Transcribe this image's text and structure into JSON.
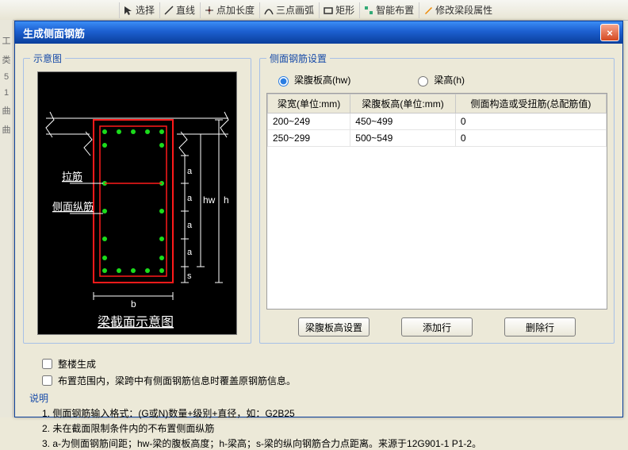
{
  "toolbar": {
    "items": [
      "选择",
      "直线",
      "点加长度",
      "三点画弧",
      "矩形",
      "智能布置",
      "修改梁段属性"
    ]
  },
  "leftStrip": [
    "工",
    "类",
    "5",
    "1",
    "曲",
    "曲"
  ],
  "dialog": {
    "title": "生成侧面钢筋",
    "close": "×"
  },
  "leftGroup": {
    "legend": "示意图"
  },
  "diagram": {
    "label_lajin": "拉筋",
    "label_cemian": "侧面纵筋",
    "caption": "梁截面示意图",
    "dim_a": "a",
    "dim_s": "s",
    "dim_b": "b",
    "dim_h": "h",
    "dim_hw": "hw"
  },
  "rightGroup": {
    "legend": "侧面钢筋设置",
    "radio1": "梁腹板高(hw)",
    "radio2": "梁高(h)"
  },
  "table": {
    "headers": [
      "梁宽(单位:mm)",
      "梁腹板高(单位:mm)",
      "侧面构造或受扭筋(总配筋值)"
    ],
    "rows": [
      [
        "200~249",
        "450~499",
        "0"
      ],
      [
        "250~299",
        "500~549",
        "0"
      ]
    ]
  },
  "buttons": {
    "b1": "梁腹板高设置",
    "b2": "添加行",
    "b3": "删除行"
  },
  "bottom": {
    "chk1": "整楼生成",
    "chk2": "布置范围内，梁跨中有侧面钢筋信息时覆盖原钢筋信息。",
    "heading": "说明",
    "n1": "1. 侧面钢筋输入格式：(G或N)数量+级别+直径，如：G2B25",
    "n2": "2. 未在截面限制条件内的不布置侧面纵筋",
    "n3": "3. a-为侧面钢筋间距；hw-梁的腹板高度；h-梁高；s-梁的纵向钢筋合力点距离。来源于12G901-1 P1-2。"
  }
}
